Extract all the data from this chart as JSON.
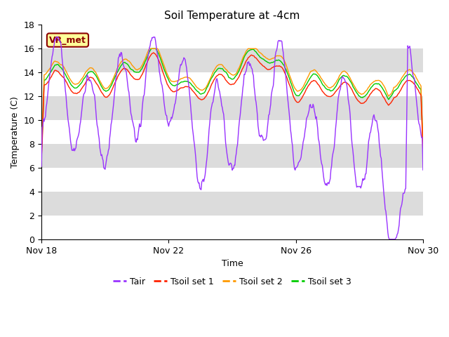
{
  "title": "Soil Temperature at -4cm",
  "xlabel": "Time",
  "ylabel": "Temperature (C)",
  "ylim": [
    0,
    18
  ],
  "yticks": [
    0,
    2,
    4,
    6,
    8,
    10,
    12,
    14,
    16,
    18
  ],
  "xtick_labels": [
    "Nov 18",
    "Nov 22",
    "Nov 26",
    "Nov 30"
  ],
  "legend_labels": [
    "Tair",
    "Tsoil set 1",
    "Tsoil set 2",
    "Tsoil set 3"
  ],
  "legend_colors": [
    "#9933FF",
    "#FF2200",
    "#FF9900",
    "#00CC00"
  ],
  "annotation_text": "VR_met",
  "band_color": "#DCDCDC",
  "band_indices": [
    1,
    3,
    5,
    7
  ],
  "title_fontsize": 11,
  "label_fontsize": 9,
  "tick_fontsize": 9
}
